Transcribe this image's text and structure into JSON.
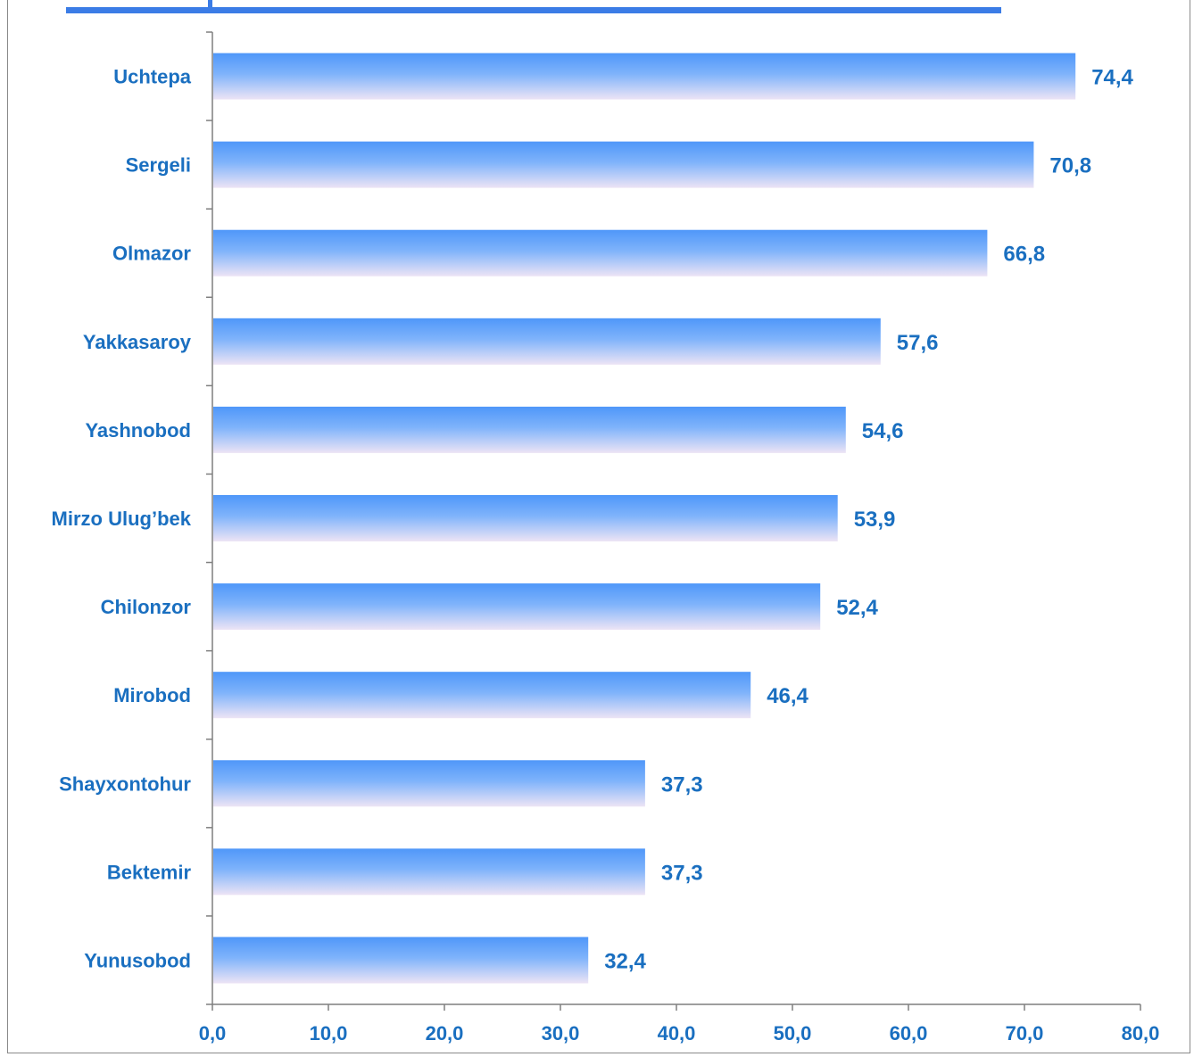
{
  "colors": {
    "label": "#1a6fc0",
    "bar_top": "#4f97f9",
    "bar_bottom": "#ede4f5",
    "axis": "#7f7f7f",
    "accent": "#3b7ce6"
  },
  "chart_data": {
    "type": "bar",
    "orientation": "horizontal",
    "categories": [
      "Uchtepa",
      "Sergeli",
      "Olmazor",
      "Yakkasaroy",
      "Yashnobod",
      "Mirzo Ulug’bek",
      "Chilonzor",
      "Mirobod",
      "Shayxontohur",
      "Bektemir",
      "Yunusobod"
    ],
    "values": [
      74.4,
      70.8,
      66.8,
      57.6,
      54.6,
      53.9,
      52.4,
      46.4,
      37.3,
      37.3,
      32.4
    ],
    "value_labels": [
      "74,4",
      "70,8",
      "66,8",
      "57,6",
      "54,6",
      "53,9",
      "52,4",
      "46,4",
      "37,3",
      "37,3",
      "32,4"
    ],
    "xlim": [
      0,
      80
    ],
    "xticks": [
      0,
      10,
      20,
      30,
      40,
      50,
      60,
      70,
      80
    ],
    "xtick_labels": [
      "0,0",
      "10,0",
      "20,0",
      "30,0",
      "40,0",
      "50,0",
      "60,0",
      "70,0",
      "80,0"
    ],
    "grid": false,
    "legend": false
  }
}
